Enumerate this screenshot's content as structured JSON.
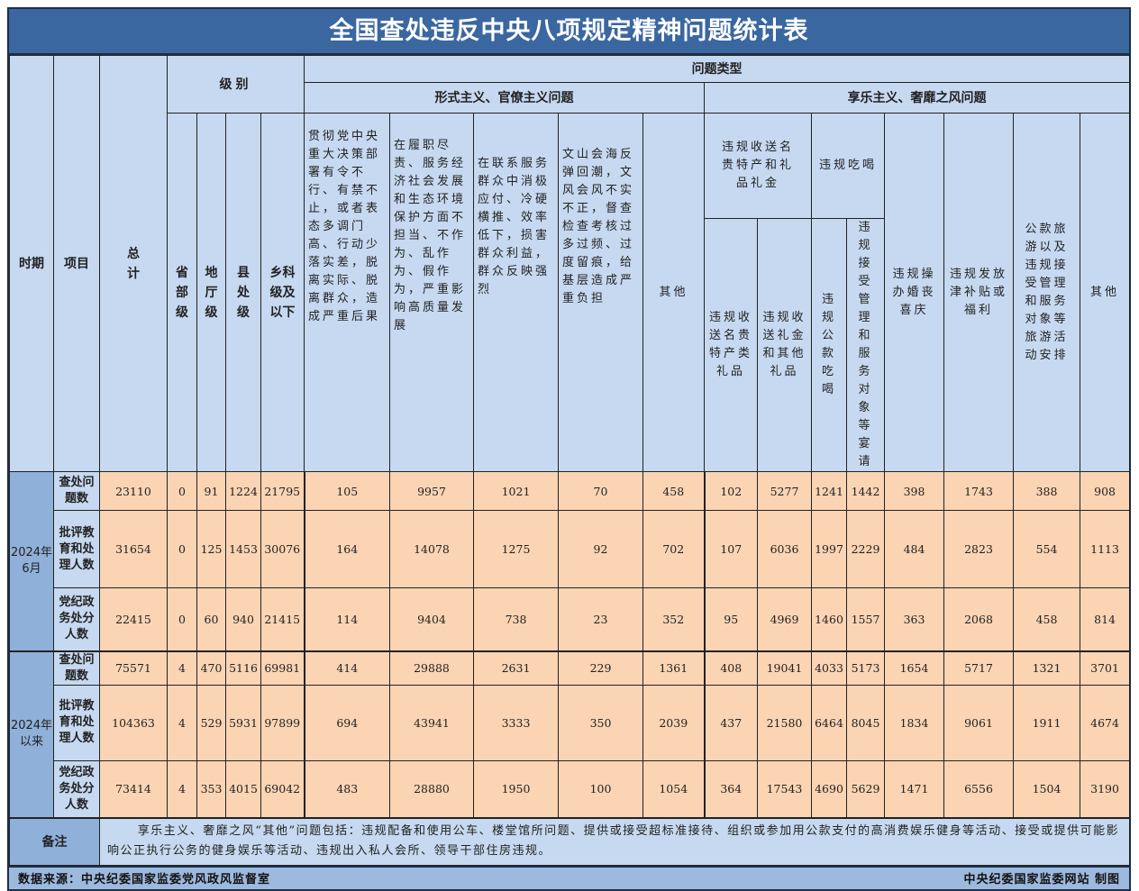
{
  "title": "全国查处违反中央八项规定精神问题统计表",
  "headers": {
    "period": "时期",
    "item": "项目",
    "total": "总计",
    "level": "级别",
    "problem_type": "问题类型",
    "formalism": "形式主义、官僚主义问题",
    "hedonism": "享乐主义、奢靡之风问题",
    "levels": [
      "省部级",
      "地厅级",
      "县处级",
      "乡科级及以下"
    ],
    "formalism_cols": [
      "贯彻党中央重大决策部署有令不行、有禁不止，或者表态多调门高、行动少落实差，脱离实际、脱离群众，造成严重后果",
      "在履职尽责、服务经济社会发展和生态环境保护方面不担当、不作为、乱作为、假作为，严重影响高质量发展",
      "在联系服务群众中消极应付、冷硬横推、效率低下，损害群众利益，群众反映强烈",
      "文山会海反弹回潮，文风会风不实不正，督查检查考核过多过频、过度留痕，给基层造成严重负担",
      "其他"
    ],
    "gifts_group": "违规收送名贵特产和礼品礼金",
    "dining_group": "违规吃喝",
    "gifts_cols": [
      "违规收送名贵特产类礼品",
      "违规收送礼金和其他礼品"
    ],
    "dining_cols": [
      "违规公款吃喝",
      "违规接受管理和服务对象等宴请"
    ],
    "hedonism_cols": [
      "违规操办婚丧喜庆",
      "违规发放津补贴或福利",
      "公款旅游以及违规接受管理和服务对象等旅游活动安排",
      "其他"
    ]
  },
  "periods": [
    {
      "label": "2024年6月",
      "rows": [
        {
          "item": "查处问题数",
          "values": [
            23110,
            0,
            91,
            1224,
            21795,
            105,
            9957,
            1021,
            70,
            458,
            102,
            5277,
            1241,
            1442,
            398,
            1743,
            388,
            908
          ]
        },
        {
          "item": "批评教育和处理人数",
          "values": [
            31654,
            0,
            125,
            1453,
            30076,
            164,
            14078,
            1275,
            92,
            702,
            107,
            6036,
            1997,
            2229,
            484,
            2823,
            554,
            1113
          ]
        },
        {
          "item": "党纪政务处分人数",
          "values": [
            22415,
            0,
            60,
            940,
            21415,
            114,
            9404,
            738,
            23,
            352,
            95,
            4969,
            1460,
            1557,
            363,
            2068,
            458,
            814
          ]
        }
      ]
    },
    {
      "label": "2024年以来",
      "rows": [
        {
          "item": "查处问题数",
          "values": [
            75571,
            4,
            470,
            5116,
            69981,
            414,
            29888,
            2631,
            229,
            1361,
            408,
            19041,
            4033,
            5173,
            1654,
            5717,
            1321,
            3701
          ]
        },
        {
          "item": "批评教育和处理人数",
          "values": [
            104363,
            4,
            529,
            5931,
            97899,
            694,
            43941,
            3333,
            350,
            2039,
            437,
            21580,
            6464,
            8045,
            1834,
            9061,
            1911,
            4674
          ]
        },
        {
          "item": "党纪政务处分人数",
          "values": [
            73414,
            4,
            353,
            4015,
            69042,
            483,
            28880,
            1950,
            100,
            1054,
            364,
            17543,
            4690,
            5629,
            1471,
            6556,
            1504,
            3190
          ]
        }
      ]
    }
  ],
  "note": {
    "label": "备注",
    "text": "享乐主义、奢靡之风“其他”问题包括：违规配备和使用公车、楼堂馆所问题、提供或接受超标准接待、组织或参加用公款支付的高消费娱乐健身等活动、接受或提供可能影响公正执行公务的健身娱乐等活动、违规出入私人会所、领导干部住房违规。"
  },
  "footer": {
    "source": "数据来源：中央纪委国家监委党风政风监督室",
    "credit": "中央纪委国家监委网站 制图"
  },
  "colors": {
    "title_bg": "#3b67a0",
    "header_bg": "#c6d9f0",
    "period_bg": "#8fb0d9",
    "data_bg": "#fbd4b4"
  }
}
